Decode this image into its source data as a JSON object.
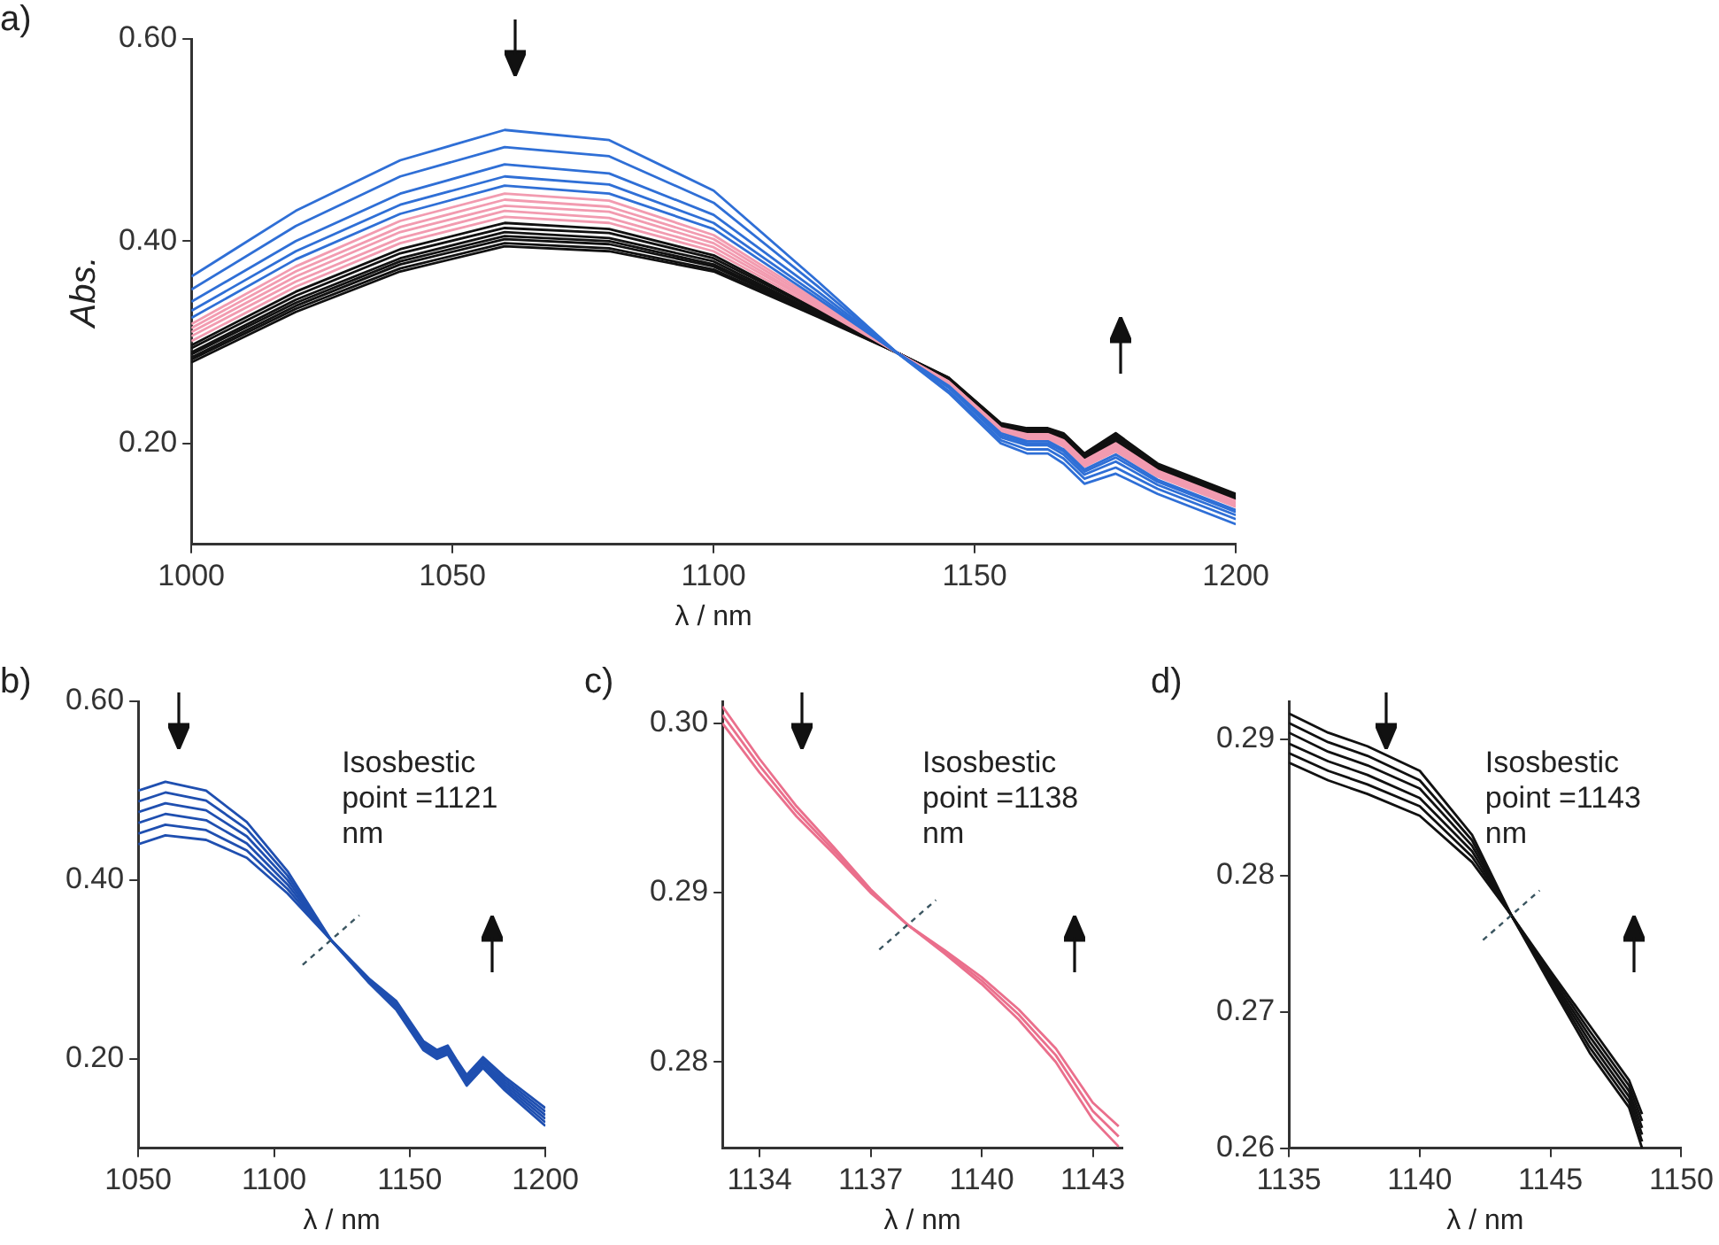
{
  "chart_data": [
    {
      "type": "line",
      "title": "a)",
      "xlabel": "λ / nm",
      "ylabel": "Abs.",
      "x": [
        1000,
        1020,
        1040,
        1060,
        1080,
        1100,
        1120,
        1135,
        1145,
        1155,
        1160,
        1164,
        1167,
        1171,
        1177,
        1185,
        1200
      ],
      "xlim": [
        1000,
        1200
      ],
      "xticks": [
        1000,
        1050,
        1100,
        1150,
        1200
      ],
      "ylim": [
        0.1,
        0.6
      ],
      "yticks": [
        {
          "value": 0.2,
          "label": "0.20"
        },
        {
          "value": 0.4,
          "label": "0.40"
        },
        {
          "value": 0.6,
          "label": "0.60"
        }
      ],
      "grid": false,
      "legend": false,
      "marker": "none",
      "line_style": "solid",
      "series": [
        {
          "color": "#2f6fd6",
          "values": [
            0.365,
            0.43,
            0.48,
            0.51,
            0.5,
            0.45,
            0.36,
            0.29,
            0.25,
            0.2,
            0.19,
            0.19,
            0.18,
            0.16,
            0.17,
            0.15,
            0.12
          ]
        },
        {
          "color": "#2f6fd6",
          "values": [
            0.352,
            0.415,
            0.464,
            0.493,
            0.484,
            0.438,
            0.355,
            0.29,
            0.252,
            0.203,
            0.194,
            0.194,
            0.185,
            0.165,
            0.176,
            0.155,
            0.125
          ]
        },
        {
          "color": "#2f6fd6",
          "values": [
            0.34,
            0.4,
            0.447,
            0.476,
            0.467,
            0.426,
            0.35,
            0.29,
            0.255,
            0.206,
            0.198,
            0.198,
            0.189,
            0.169,
            0.182,
            0.159,
            0.129
          ]
        },
        {
          "color": "#2f6fd6",
          "values": [
            0.331,
            0.39,
            0.436,
            0.464,
            0.456,
            0.418,
            0.346,
            0.29,
            0.256,
            0.208,
            0.2,
            0.2,
            0.192,
            0.172,
            0.186,
            0.162,
            0.132
          ]
        },
        {
          "color": "#2f6fd6",
          "values": [
            0.324,
            0.382,
            0.427,
            0.455,
            0.447,
            0.412,
            0.343,
            0.29,
            0.257,
            0.21,
            0.202,
            0.202,
            0.194,
            0.174,
            0.189,
            0.164,
            0.134
          ]
        },
        {
          "color": "#f29bb0",
          "values": [
            0.318,
            0.375,
            0.42,
            0.447,
            0.44,
            0.406,
            0.341,
            0.29,
            0.258,
            0.211,
            0.204,
            0.204,
            0.197,
            0.177,
            0.192,
            0.167,
            0.137
          ]
        },
        {
          "color": "#f29bb0",
          "values": [
            0.314,
            0.37,
            0.414,
            0.441,
            0.434,
            0.402,
            0.339,
            0.29,
            0.259,
            0.212,
            0.205,
            0.205,
            0.198,
            0.178,
            0.194,
            0.168,
            0.138
          ]
        },
        {
          "color": "#f29bb0",
          "values": [
            0.31,
            0.365,
            0.409,
            0.435,
            0.429,
            0.398,
            0.337,
            0.29,
            0.26,
            0.213,
            0.206,
            0.206,
            0.2,
            0.18,
            0.196,
            0.17,
            0.14
          ]
        },
        {
          "color": "#f29bb0",
          "values": [
            0.306,
            0.36,
            0.403,
            0.43,
            0.423,
            0.394,
            0.336,
            0.29,
            0.261,
            0.214,
            0.208,
            0.208,
            0.201,
            0.181,
            0.198,
            0.171,
            0.141
          ]
        },
        {
          "color": "#f29bb0",
          "values": [
            0.301,
            0.355,
            0.398,
            0.424,
            0.418,
            0.39,
            0.334,
            0.29,
            0.261,
            0.215,
            0.209,
            0.209,
            0.203,
            0.183,
            0.2,
            0.173,
            0.143
          ]
        },
        {
          "color": "#111111",
          "values": [
            0.297,
            0.35,
            0.392,
            0.418,
            0.412,
            0.386,
            0.332,
            0.29,
            0.262,
            0.216,
            0.21,
            0.21,
            0.204,
            0.184,
            0.202,
            0.174,
            0.144
          ]
        },
        {
          "color": "#111111",
          "values": [
            0.294,
            0.346,
            0.388,
            0.413,
            0.408,
            0.383,
            0.331,
            0.29,
            0.263,
            0.217,
            0.211,
            0.211,
            0.205,
            0.185,
            0.204,
            0.175,
            0.145
          ]
        },
        {
          "color": "#111111",
          "values": [
            0.29,
            0.342,
            0.383,
            0.409,
            0.403,
            0.38,
            0.329,
            0.29,
            0.263,
            0.218,
            0.212,
            0.212,
            0.206,
            0.186,
            0.205,
            0.176,
            0.146
          ]
        },
        {
          "color": "#111111",
          "values": [
            0.288,
            0.339,
            0.38,
            0.405,
            0.4,
            0.377,
            0.328,
            0.29,
            0.264,
            0.218,
            0.213,
            0.213,
            0.207,
            0.187,
            0.206,
            0.177,
            0.147
          ]
        },
        {
          "color": "#111111",
          "values": [
            0.285,
            0.336,
            0.377,
            0.402,
            0.397,
            0.375,
            0.327,
            0.29,
            0.264,
            0.219,
            0.214,
            0.214,
            0.208,
            0.188,
            0.208,
            0.178,
            0.148
          ]
        },
        {
          "color": "#111111",
          "values": [
            0.283,
            0.333,
            0.373,
            0.398,
            0.393,
            0.372,
            0.326,
            0.29,
            0.265,
            0.219,
            0.214,
            0.214,
            0.209,
            0.189,
            0.209,
            0.179,
            0.149
          ]
        },
        {
          "color": "#111111",
          "values": [
            0.28,
            0.33,
            0.37,
            0.395,
            0.39,
            0.37,
            0.325,
            0.29,
            0.265,
            0.22,
            0.215,
            0.215,
            0.21,
            0.19,
            0.21,
            0.18,
            0.15
          ]
        }
      ]
    },
    {
      "type": "line",
      "title": "b)",
      "xlabel": "λ / nm",
      "x": [
        1050,
        1060,
        1075,
        1090,
        1105,
        1121,
        1135,
        1145,
        1155,
        1160,
        1164,
        1167,
        1171,
        1177,
        1185,
        1200
      ],
      "xlim": [
        1050,
        1200
      ],
      "xticks": [
        1050,
        1100,
        1150,
        1200
      ],
      "ylim": [
        0.1,
        0.6
      ],
      "yticks": [
        {
          "value": 0.2,
          "label": "0.20"
        },
        {
          "value": 0.4,
          "label": "0.40"
        },
        {
          "value": 0.6,
          "label": "0.60"
        }
      ],
      "grid": false,
      "legend": false,
      "marker": "none",
      "line_style": "solid",
      "annotations": [
        {
          "text": "Isosbestic point =1121 nm",
          "x": 1121,
          "y": 0.333
        }
      ],
      "series": [
        {
          "color": "#1f4fb0",
          "values": [
            0.5,
            0.51,
            0.5,
            0.465,
            0.41,
            0.333,
            0.285,
            0.255,
            0.21,
            0.2,
            0.205,
            0.19,
            0.17,
            0.19,
            0.165,
            0.125
          ]
        },
        {
          "color": "#1f4fb0",
          "values": [
            0.488,
            0.498,
            0.489,
            0.457,
            0.405,
            0.333,
            0.286,
            0.257,
            0.212,
            0.202,
            0.207,
            0.192,
            0.172,
            0.192,
            0.168,
            0.129
          ]
        },
        {
          "color": "#1f4fb0",
          "values": [
            0.476,
            0.486,
            0.478,
            0.449,
            0.4,
            0.333,
            0.287,
            0.259,
            0.214,
            0.204,
            0.209,
            0.194,
            0.175,
            0.195,
            0.171,
            0.133
          ]
        },
        {
          "color": "#1f4fb0",
          "values": [
            0.464,
            0.474,
            0.467,
            0.441,
            0.395,
            0.333,
            0.288,
            0.261,
            0.216,
            0.206,
            0.211,
            0.196,
            0.177,
            0.197,
            0.174,
            0.137
          ]
        },
        {
          "color": "#1f4fb0",
          "values": [
            0.452,
            0.462,
            0.456,
            0.433,
            0.39,
            0.333,
            0.289,
            0.263,
            0.218,
            0.208,
            0.213,
            0.198,
            0.18,
            0.2,
            0.177,
            0.141
          ]
        },
        {
          "color": "#1f4fb0",
          "values": [
            0.44,
            0.45,
            0.445,
            0.425,
            0.385,
            0.333,
            0.29,
            0.265,
            0.22,
            0.21,
            0.215,
            0.2,
            0.182,
            0.202,
            0.18,
            0.145
          ]
        }
      ]
    },
    {
      "type": "line",
      "title": "c)",
      "xlabel": "λ / nm",
      "x": [
        1133,
        1134,
        1135,
        1136,
        1137,
        1138,
        1139,
        1140,
        1141,
        1142,
        1143,
        1143.7
      ],
      "xlim": [
        1133,
        1143.8
      ],
      "xticks": [
        1134,
        1137,
        1140,
        1143
      ],
      "ylim": [
        0.2749,
        0.3013
      ],
      "yticks": [
        0.28,
        0.29,
        {
          "value": 0.3,
          "label": "0.30"
        }
      ],
      "grid": false,
      "legend": false,
      "marker": "none",
      "line_style": "solid",
      "annotations": [
        {
          "text": "Isosbestic point =1138 nm",
          "x": 1138,
          "y": 0.2881
        }
      ],
      "series": [
        {
          "color": "#ea6f8c",
          "values": [
            0.301,
            0.2979,
            0.2951,
            0.2927,
            0.2902,
            0.2881,
            0.2864,
            0.2846,
            0.2825,
            0.28,
            0.2766,
            0.275
          ]
        },
        {
          "color": "#ea6f8c",
          "values": [
            0.3005,
            0.2975,
            0.2948,
            0.2925,
            0.2901,
            0.2881,
            0.2865,
            0.2848,
            0.2828,
            0.2804,
            0.2771,
            0.2756
          ]
        },
        {
          "color": "#ea6f8c",
          "values": [
            0.3,
            0.2971,
            0.2945,
            0.2923,
            0.29,
            0.2881,
            0.2866,
            0.285,
            0.2831,
            0.2808,
            0.2776,
            0.2762
          ]
        }
      ]
    },
    {
      "type": "line",
      "title": "d)",
      "xlabel": "λ / nm",
      "x": [
        1135,
        1136.5,
        1138,
        1140,
        1142,
        1143.5,
        1145,
        1146.5,
        1148,
        1148.5
      ],
      "xlim": [
        1135,
        1150
      ],
      "xticks": [
        1135,
        1140,
        1145,
        1150
      ],
      "ylim": [
        0.26,
        0.2928
      ],
      "yticks": [
        0.26,
        0.27,
        0.28,
        0.29
      ],
      "grid": false,
      "legend": false,
      "marker": "none",
      "line_style": "solid",
      "annotations": [
        {
          "text": "Isosbestic point =1143 nm",
          "x": 1143.5,
          "y": 0.2771
        }
      ],
      "series": [
        {
          "color": "#111111",
          "values": [
            0.2919,
            0.2905,
            0.2895,
            0.2877,
            0.283,
            0.2771,
            0.272,
            0.267,
            0.263,
            0.26
          ]
        },
        {
          "color": "#111111",
          "values": [
            0.2912,
            0.2898,
            0.2888,
            0.287,
            0.2826,
            0.2771,
            0.2722,
            0.2674,
            0.2634,
            0.2605
          ]
        },
        {
          "color": "#111111",
          "values": [
            0.2905,
            0.2891,
            0.2881,
            0.2864,
            0.2822,
            0.2771,
            0.2724,
            0.2678,
            0.2638,
            0.261
          ]
        },
        {
          "color": "#111111",
          "values": [
            0.2897,
            0.2884,
            0.2874,
            0.2857,
            0.2818,
            0.2771,
            0.2726,
            0.2682,
            0.2642,
            0.2615
          ]
        },
        {
          "color": "#111111",
          "values": [
            0.289,
            0.2877,
            0.2867,
            0.2851,
            0.2814,
            0.2771,
            0.2728,
            0.2686,
            0.2646,
            0.262
          ]
        },
        {
          "color": "#111111",
          "values": [
            0.2883,
            0.287,
            0.286,
            0.2844,
            0.281,
            0.2771,
            0.273,
            0.269,
            0.265,
            0.2625
          ]
        }
      ]
    }
  ]
}
